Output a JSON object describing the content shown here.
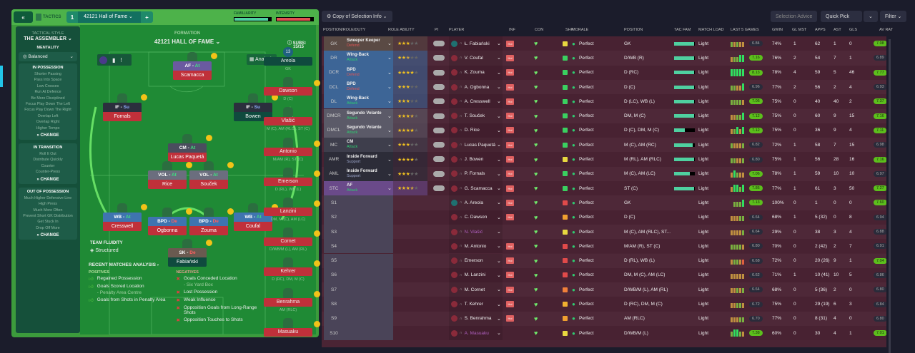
{
  "tactics": {
    "back": "«",
    "title": "TACTICS",
    "slot": "1",
    "name": "42121 Hall of Fame",
    "add": "+",
    "familiarity_label": "FAMILIARITY",
    "intensity_label": "INTENSITY",
    "familiarity": 0.92,
    "intensity": 0.92
  },
  "sidebar": {
    "style_label": "TACTICAL STYLE",
    "style": "THE ASSEMBLER",
    "mentality_label": "MENTALITY",
    "mentality": "Balanced",
    "sections": [
      {
        "title": "IN POSSESSION",
        "items": [
          "Shorter Passing",
          "Pass Into Space",
          "Low Crosses",
          "Run At Defence",
          "Be More Disciplined",
          "Focus Play Down The Left",
          "Focus Play Down The Right",
          "Overlap Left",
          "Overlap Right",
          "Higher Tempo"
        ],
        "change": "» CHANGE"
      },
      {
        "title": "IN TRANSITION",
        "items": [
          "Roll It Out",
          "Distribute Quickly",
          "Counter",
          "Counter-Press"
        ],
        "change": "» CHANGE"
      },
      {
        "title": "OUT OF POSSESSION",
        "items": [
          "Much Higher Defensive Line",
          "High Press",
          "Much More Often",
          "Prevent Short GK Distribution",
          "Get Stuck In",
          "Drop Off More"
        ],
        "change": "» CHANGE"
      }
    ]
  },
  "formation": {
    "label": "FORMATION",
    "name": "42121 HALL OF FAME",
    "subs_label": "SUBS:",
    "subs": "15/15",
    "analysis": "Analysis",
    "fluidity_label": "TEAM FLUIDITY",
    "fluidity": "Structured"
  },
  "pitch": [
    {
      "role": "AF",
      "duty": "At",
      "name": "Scamacca",
      "rc": "#6a5aa0"
    },
    {
      "role": "IF",
      "duty": "Su",
      "name": "Fornals",
      "rc": "#2b2f3d"
    },
    {
      "role": "IF",
      "duty": "Su",
      "name": "Bowen",
      "rc": "#2b2f3d",
      "nc": "#0f4a3e"
    },
    {
      "role": "CM",
      "duty": "At",
      "name": "Lucas Paquetá",
      "rc": "#4a4d5e"
    },
    {
      "role": "VOL",
      "duty": "At",
      "name": "Rice",
      "rc": "#6b6e7e"
    },
    {
      "role": "VOL",
      "duty": "At",
      "name": "Souček",
      "rc": "#6b6e7e"
    },
    {
      "role": "WB",
      "duty": "At",
      "name": "Cresswell",
      "rc": "#3f74b0"
    },
    {
      "role": "BPD",
      "duty": "De",
      "name": "Ogbonna",
      "rc": "#3f74b0"
    },
    {
      "role": "BPD",
      "duty": "De",
      "name": "Zouma",
      "rc": "#3f74b0"
    },
    {
      "role": "WB",
      "duty": "At",
      "name": "Coufal",
      "rc": "#3f74b0"
    },
    {
      "role": "SK",
      "duty": "De",
      "name": "Fabiański",
      "rc": "#6a5a50",
      "nc": "#0f4a3e"
    }
  ],
  "subs": [
    {
      "name": "Areola",
      "pos": "GK",
      "number": "13"
    },
    {
      "name": "Dawson",
      "pos": "D (C)"
    },
    {
      "name": "Vlašić",
      "pos": "M (C), AM (RLC), ST (C)"
    },
    {
      "name": "Antonio",
      "pos": "M/AM (R), ST (C)"
    },
    {
      "name": "Emerson",
      "pos": "D (RL), WB (L)"
    },
    {
      "name": "Lanzini",
      "pos": "DM, M (C), AM (LC)"
    },
    {
      "name": "Cornet",
      "pos": "D/WB/M (L), AM (RL)"
    },
    {
      "name": "Kehrer",
      "pos": "D (RC), DM, M (C)"
    },
    {
      "name": "Benrahma",
      "pos": "AM (RLC)"
    },
    {
      "name": "Masuaku",
      "pos": ""
    }
  ],
  "analysis": {
    "title": "RECENT MATCHES ANALYSIS ›",
    "pos_label": "POSITIVES",
    "neg_label": "NEGATIVES",
    "positives": [
      {
        "t": "Regained Possession",
        "s": ""
      },
      {
        "t": "Goals Scored Location",
        "s": "- Penalty Area Centre"
      },
      {
        "t": "Goals from Shots in Penalty Area",
        "s": ""
      }
    ],
    "negatives": [
      {
        "t": "Goals Conceded Location",
        "s": "- Six Yard Box"
      },
      {
        "t": "Lost Possession",
        "s": ""
      },
      {
        "t": "Weak Influence",
        "s": ""
      },
      {
        "t": "Opposition Goals from Long-Range Shots",
        "s": ""
      },
      {
        "t": "Opposition Touches to Shots",
        "s": ""
      }
    ]
  },
  "toolbar": {
    "copy": "Copy of Selection Info",
    "advice": "Selection Advice",
    "quick": "Quick Pick",
    "filter": "Filter"
  },
  "columns": [
    "POSITION/ROLE/DUTY",
    "ROLE ABILITY",
    "PI",
    "PLAYER",
    "INF",
    "CON",
    "SHP",
    "MORALE",
    "POSITION",
    "TAC FAM",
    "MATCH LOAD",
    "LAST 5 GAMES",
    "GWIN",
    "GL MST",
    "APPS",
    "AST",
    "GLS",
    "AV RAT"
  ],
  "colors": {
    "defend": "#e05555",
    "attack": "#2ecc71",
    "support": "#9aa4c8",
    "good": "#5cbf1c"
  },
  "rows": [
    {
      "code": "GK",
      "role": "Sweeper Keeper",
      "duty": "Defend",
      "bg": "#5a4a44",
      "stars": 3,
      "player": "Ł. Fabiański",
      "inf": "Hol",
      "shp": "#e8d840",
      "morale": "Perfect",
      "pos": "GK",
      "fam": 0.95,
      "load": "Light",
      "l5": "gogoo",
      "form": "6.84",
      "gwin": "74%",
      "glmst": "1",
      "apps": "62",
      "ast": "1",
      "gls": "0",
      "av": "7.08"
    },
    {
      "code": "DR",
      "role": "Wing-Back",
      "duty": "Attack",
      "bg": "#3d6596",
      "stars": 2.5,
      "player": "V. Coufal",
      "inf": "Hol",
      "shp": "#3ad060",
      "morale": "Perfect",
      "pos": "D/WB (R)",
      "fam": 0.95,
      "load": "Light",
      "l5": "oggGG",
      "form": "7.16",
      "gwin": "76%",
      "glmst": "2",
      "apps": "54",
      "ast": "7",
      "gls": "1",
      "av": "6.89"
    },
    {
      "code": "DCR",
      "role": "BPD",
      "duty": "Defend",
      "bg": "#3d6596",
      "stars": 4,
      "player": "K. Zouma",
      "inf": "Hol",
      "shp": "#3ad060",
      "morale": "Perfect",
      "pos": "D (RC)",
      "fam": 0.95,
      "load": "Light",
      "l5": "GGGGG",
      "form": "8.13",
      "gwin": "78%",
      "glmst": "4",
      "apps": "59",
      "ast": "5",
      "gls": "46",
      "av": "7.77"
    },
    {
      "code": "DCL",
      "role": "BPD",
      "duty": "Defend",
      "bg": "#3d6596",
      "stars": 3,
      "player": "A. Ogbonna",
      "inf": "Hol",
      "shp": "#3ad060",
      "morale": "Perfect",
      "pos": "D (C)",
      "fam": 0.95,
      "load": "Light",
      "l5": "ggooG",
      "form": "6.96",
      "gwin": "77%",
      "glmst": "2",
      "apps": "56",
      "ast": "2",
      "gls": "4",
      "av": "6.93"
    },
    {
      "code": "DL",
      "role": "Wing-Back",
      "duty": "Attack",
      "bg": "#3d6596",
      "stars": 3,
      "player": "A. Cresswell",
      "inf": "Hol",
      "shp": "#3ad060",
      "morale": "Perfect",
      "pos": "D (LC), WB (L)",
      "fam": 0.95,
      "load": "Light",
      "l5": "ggggo",
      "form": "7.06",
      "gwin": "75%",
      "glmst": "0",
      "apps": "40",
      "ast": "40",
      "gls": "2",
      "av": "7.37"
    },
    {
      "code": "DMCR",
      "role": "Segundo Volante",
      "duty": "Attack",
      "bg": "#5b5a68",
      "stars": 3.5,
      "player": "T. Souček",
      "inf": "Hol",
      "shp": "#3ad060",
      "morale": "Perfect",
      "pos": "DM, M (C)",
      "fam": 0.95,
      "load": "Light",
      "l5": "ooggG",
      "form": "7.12",
      "gwin": "75%",
      "glmst": "0",
      "apps": "60",
      "ast": "9",
      "gls": "15",
      "av": "7.16"
    },
    {
      "code": "DMCL",
      "role": "Segundo Volante",
      "duty": "Attack",
      "bg": "#5b5a68",
      "stars": 4,
      "player": "D. Rice",
      "inf": "Hol",
      "shp": "#3ad060",
      "morale": "Perfect",
      "pos": "D (C), DM, M (C)",
      "fam": 0.5,
      "load": "Light",
      "l5": "ogGoG",
      "form": "7.12",
      "gwin": "75%",
      "glmst": "0",
      "apps": "36",
      "ast": "9",
      "gls": "4",
      "av": "7.11"
    },
    {
      "code": "MC",
      "role": "CM",
      "duty": "Attack",
      "bg": "#3e3e4c",
      "stars": 3,
      "player": "Lucas Paquetá",
      "inf": "Hol",
      "shp": "#3ad060",
      "morale": "Perfect",
      "pos": "M (C), AM (RC)",
      "fam": 0.9,
      "load": "Light",
      "l5": "gooog",
      "form": "6.82",
      "gwin": "72%",
      "glmst": "1",
      "apps": "58",
      "ast": "7",
      "gls": "15",
      "av": "6.98"
    },
    {
      "code": "AMR",
      "role": "Inside Forward",
      "duty": "Support",
      "bg": "#2c2c38",
      "stars": 4,
      "player": "J. Bowen",
      "inf": "Hol",
      "shp": "#e8d840",
      "morale": "Perfect",
      "pos": "M (RL), AM (RLC)",
      "fam": 0.95,
      "load": "Light",
      "l5": "ggoog",
      "form": "6.80",
      "gwin": "75%",
      "glmst": "1",
      "apps": "56",
      "ast": "28",
      "gls": "16",
      "av": "7.16"
    },
    {
      "code": "AML",
      "role": "Inside Forward",
      "duty": "Support",
      "bg": "#2c2c38",
      "stars": 3,
      "player": "P. Fornals",
      "inf": "Hol",
      "shp": "#3ad060",
      "morale": "Perfect",
      "pos": "M (C), AM (LC)",
      "fam": 0.75,
      "load": "Light",
      "l5": "oGgoo",
      "form": "7.06",
      "gwin": "78%",
      "glmst": "1",
      "apps": "59",
      "ast": "10",
      "gls": "10",
      "av": "6.97"
    },
    {
      "code": "STC",
      "role": "AF",
      "duty": "Attack",
      "bg": "#6a4a8a",
      "stars": 3.5,
      "player": "G. Scamacca",
      "inf": "Hol",
      "shp": "#3ad060",
      "morale": "Perfect",
      "pos": "ST (C)",
      "fam": 0.95,
      "load": "Light",
      "l5": "oGGgG",
      "form": "7.86",
      "gwin": "77%",
      "glmst": "1",
      "apps": "61",
      "ast": "3",
      "gls": "50",
      "av": "7.27"
    },
    {
      "code": "S1",
      "player": "A. Areola",
      "inf": "Hol",
      "shp": "#e04a4a",
      "morale": "Perfect",
      "pos": "GK",
      "load": "Light",
      "l5": "gggG",
      "form": "7.13",
      "gwin": "100%",
      "glmst": "0",
      "apps": "1",
      "ast": "0",
      "gls": "0",
      "av": "7.60"
    },
    {
      "code": "S2",
      "player": "C. Dawson",
      "inf": "Hol",
      "shp": "#f0a030",
      "morale": "Perfect",
      "pos": "D (C)",
      "load": "Light",
      "l5": "ooogg",
      "form": "6.64",
      "gwin": "68%",
      "glmst": "1",
      "apps": "5 (32)",
      "ast": "0",
      "gls": "8",
      "av": "6.94"
    },
    {
      "code": "S3",
      "player": "N. Vlašić",
      "dim": true,
      "inf": "",
      "shp": "#e8d840",
      "morale": "Perfect",
      "pos": "M (C), AM (RLC), ST...",
      "load": "Light",
      "l5": "oooog",
      "form": "6.64",
      "gwin": "29%",
      "glmst": "0",
      "apps": "38",
      "ast": "3",
      "gls": "4",
      "av": "6.88"
    },
    {
      "code": "S4",
      "player": "M. Antonio",
      "inf": "Hol",
      "shp": "#e04a4a",
      "morale": "Perfect",
      "pos": "M/AM (R), ST (C)",
      "load": "Light",
      "l5": "ggggo",
      "form": "6.80",
      "gwin": "70%",
      "glmst": "0",
      "apps": "2 (42)",
      "ast": "2",
      "gls": "7",
      "av": "6.91"
    },
    {
      "code": "S5",
      "player": "Emerson",
      "inf": "Hol",
      "shp": "#e04a4a",
      "morale": "Perfect",
      "pos": "D (RL), WB (L)",
      "load": "Light",
      "l5": "oggor",
      "form": "6.68",
      "gwin": "72%",
      "glmst": "0",
      "apps": "20 (26)",
      "ast": "9",
      "gls": "1",
      "av": "7.04"
    },
    {
      "code": "S6",
      "player": "M. Lanzini",
      "inf": "Hol",
      "shp": "#e04a4a",
      "morale": "Perfect",
      "pos": "DM, M (C), AM (LC)",
      "load": "Light",
      "l5": "ooooo",
      "form": "6.62",
      "gwin": "71%",
      "glmst": "1",
      "apps": "10 (41)",
      "ast": "10",
      "gls": "5",
      "av": "6.86"
    },
    {
      "code": "S7",
      "player": "M. Cornet",
      "inf": "Hol",
      "shp": "#f0803a",
      "morale": "Perfect",
      "pos": "D/WB/M (L), AM (RL)",
      "load": "Light",
      "l5": "oogog",
      "form": "6.64",
      "gwin": "68%",
      "glmst": "0",
      "apps": "5 (36)",
      "ast": "2",
      "gls": "0",
      "av": "6.80"
    },
    {
      "code": "S8",
      "player": "T. Kehrer",
      "inf": "Hol",
      "shp": "#f0b030",
      "morale": "Perfect",
      "pos": "D (RC), DM, M (C)",
      "load": "Light",
      "l5": "ooggo",
      "form": "6.72",
      "gwin": "75%",
      "glmst": "0",
      "apps": "29 (19)",
      "ast": "6",
      "gls": "3",
      "av": "6.84"
    },
    {
      "code": "S9",
      "player": "S. Benrahma",
      "inf": "Hol",
      "shp": "#f0a030",
      "morale": "Perfect",
      "pos": "AM (RLC)",
      "load": "Light",
      "l5": "ooogg",
      "form": "6.70",
      "gwin": "77%",
      "glmst": "0",
      "apps": "8 (31)",
      "ast": "4",
      "gls": "0",
      "av": "6.80"
    },
    {
      "code": "S10",
      "player": "A. Masuaku",
      "dim": true,
      "inf": "",
      "shp": "#e8d840",
      "morale": "Perfect",
      "pos": "D/WB/M (L)",
      "load": "Light",
      "l5": "gGGgo",
      "form": "7.38",
      "gwin": "60%",
      "glmst": "0",
      "apps": "30",
      "ast": "4",
      "gls": "1",
      "av": "7.01"
    }
  ]
}
